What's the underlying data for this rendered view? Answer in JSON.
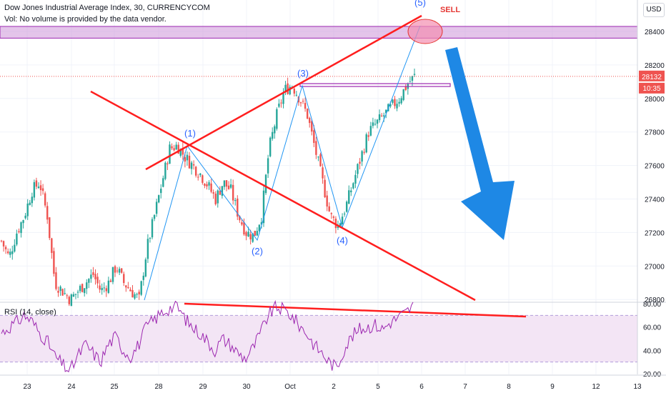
{
  "header": {
    "title": "Dow Jones Industrial Average Index, 30, CURRENCYCOM",
    "volume_note": "Vol: No volume is provided by the data vendor.",
    "rsi_label": "RSI (14, close)",
    "currency_button": "USD"
  },
  "annotations": {
    "sell_label": "SELL",
    "wave_labels": [
      "(1)",
      "(2)",
      "(3)",
      "(4)",
      "(5)"
    ]
  },
  "price_badges": {
    "current_price": "28132",
    "countdown": "10:35"
  },
  "colors": {
    "trendline": "#ff1e1e",
    "wave_line": "#2196f3",
    "wave_label": "#2962ff",
    "sell": "#e53935",
    "arrow": "#1e88e5",
    "resistance_zone": "#ce93d8",
    "resistance_line": "#9c27b0",
    "rsi_line": "#9c27b0",
    "rsi_band": "#f3e5f5",
    "candle_up": "#26a69a",
    "candle_down": "#ef5350",
    "badge": "#ef5350"
  },
  "chart_data": [
    {
      "type": "line",
      "name": "price",
      "y_axis_ticks": [
        "28400",
        "28200",
        "28000",
        "27800",
        "27600",
        "27400",
        "27200",
        "27000",
        "26800"
      ],
      "x_axis_ticks": [
        "23",
        "24",
        "25",
        "28",
        "29",
        "30",
        "Oct",
        "2",
        "5",
        "6",
        "7",
        "8",
        "9",
        "12",
        "13"
      ],
      "ylim": [
        26780,
        28480
      ],
      "resistance_zone": [
        28360,
        28430
      ],
      "horizontal_level": 28080,
      "current_price": 28132,
      "wave_points": [
        {
          "label": "(1)",
          "x": "28",
          "y": 27720
        },
        {
          "label": "(2)",
          "x": "30",
          "y": 27180
        },
        {
          "label": "(3)",
          "x": "Oct",
          "y": 28080
        },
        {
          "label": "(4)",
          "x": "2",
          "y": 27240
        },
        {
          "label": "(5)",
          "x": "6",
          "y": 28430
        }
      ],
      "close_path": [
        27150,
        27050,
        27200,
        27300,
        27450,
        27500,
        27300,
        26900,
        26850,
        26800,
        26850,
        26900,
        26950,
        26850,
        26900,
        27000,
        26900,
        26850,
        26800,
        27100,
        27300,
        27500,
        27700,
        27720,
        27650,
        27600,
        27550,
        27480,
        27400,
        27500,
        27450,
        27300,
        27200,
        27180,
        27300,
        27700,
        27900,
        28050,
        28080,
        28000,
        27900,
        27700,
        27500,
        27300,
        27240,
        27350,
        27500,
        27650,
        27800,
        27850,
        27900,
        27950,
        28000,
        28080,
        28132
      ]
    },
    {
      "type": "line",
      "name": "RSI (14, close)",
      "y_axis_ticks": [
        "80.00",
        "60.00",
        "40.00",
        "20.00"
      ],
      "ylim": [
        20,
        82
      ],
      "band": [
        30,
        70
      ],
      "values": [
        55,
        60,
        64,
        70,
        65,
        55,
        48,
        35,
        28,
        22,
        35,
        45,
        38,
        30,
        45,
        52,
        40,
        35,
        45,
        60,
        66,
        72,
        76,
        78,
        68,
        60,
        55,
        48,
        40,
        50,
        45,
        38,
        33,
        42,
        55,
        70,
        77,
        75,
        70,
        62,
        55,
        45,
        38,
        30,
        25,
        42,
        52,
        58,
        60,
        62,
        58,
        64,
        68,
        72,
        78
      ]
    }
  ]
}
